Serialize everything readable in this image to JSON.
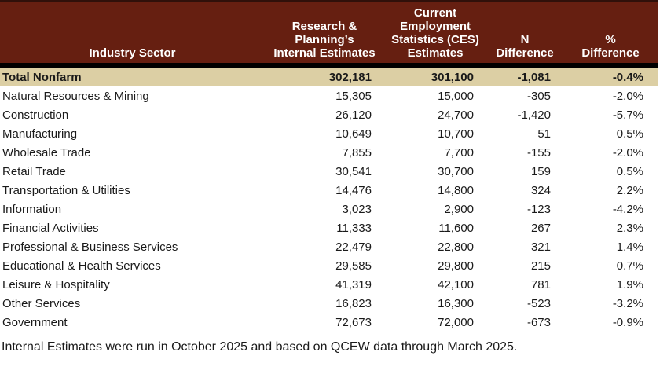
{
  "chart_data": {
    "type": "table",
    "columns": [
      "Industry Sector",
      "Research &\nPlanning’s\nInternal Estimates",
      "Current\nEmployment\nStatistics (CES)\nEstimates",
      "N\nDifference",
      "%\nDifference"
    ],
    "rows": [
      [
        "Total Nonfarm",
        "302,181",
        "301,100",
        "-1,081",
        "-0.4%"
      ],
      [
        "Natural Resources & Mining",
        "15,305",
        "15,000",
        "-305",
        "-2.0%"
      ],
      [
        "Construction",
        "26,120",
        "24,700",
        "-1,420",
        "-5.7%"
      ],
      [
        "Manufacturing",
        "10,649",
        "10,700",
        "51",
        "0.5%"
      ],
      [
        "Wholesale Trade",
        "7,855",
        "7,700",
        "-155",
        "-2.0%"
      ],
      [
        "Retail Trade",
        "30,541",
        "30,700",
        "159",
        "0.5%"
      ],
      [
        "Transportation & Utilities",
        "14,476",
        "14,800",
        "324",
        "2.2%"
      ],
      [
        "Information",
        "3,023",
        "2,900",
        "-123",
        "-4.2%"
      ],
      [
        "Financial Activities",
        "11,333",
        "11,600",
        "267",
        "2.3%"
      ],
      [
        "Professional & Business Services",
        "22,479",
        "22,800",
        "321",
        "1.4%"
      ],
      [
        "Educational & Health Services",
        "29,585",
        "29,800",
        "215",
        "0.7%"
      ],
      [
        "Leisure & Hospitality",
        "41,319",
        "42,100",
        "781",
        "1.9%"
      ],
      [
        "Other Services",
        "16,823",
        "16,300",
        "-523",
        "-3.2%"
      ],
      [
        "Government",
        "72,673",
        "72,000",
        "-673",
        "-0.9%"
      ]
    ]
  },
  "footnote": "Internal Estimates were run in October 2025 and based on QCEW data through March 2025.",
  "colors": {
    "header_bg": "#661f11",
    "header_text": "#ffffff",
    "header_divider": "#000000",
    "total_row_bg": "#dccfa4",
    "body_text": "#1a1a1a",
    "background": "#ffffff"
  }
}
